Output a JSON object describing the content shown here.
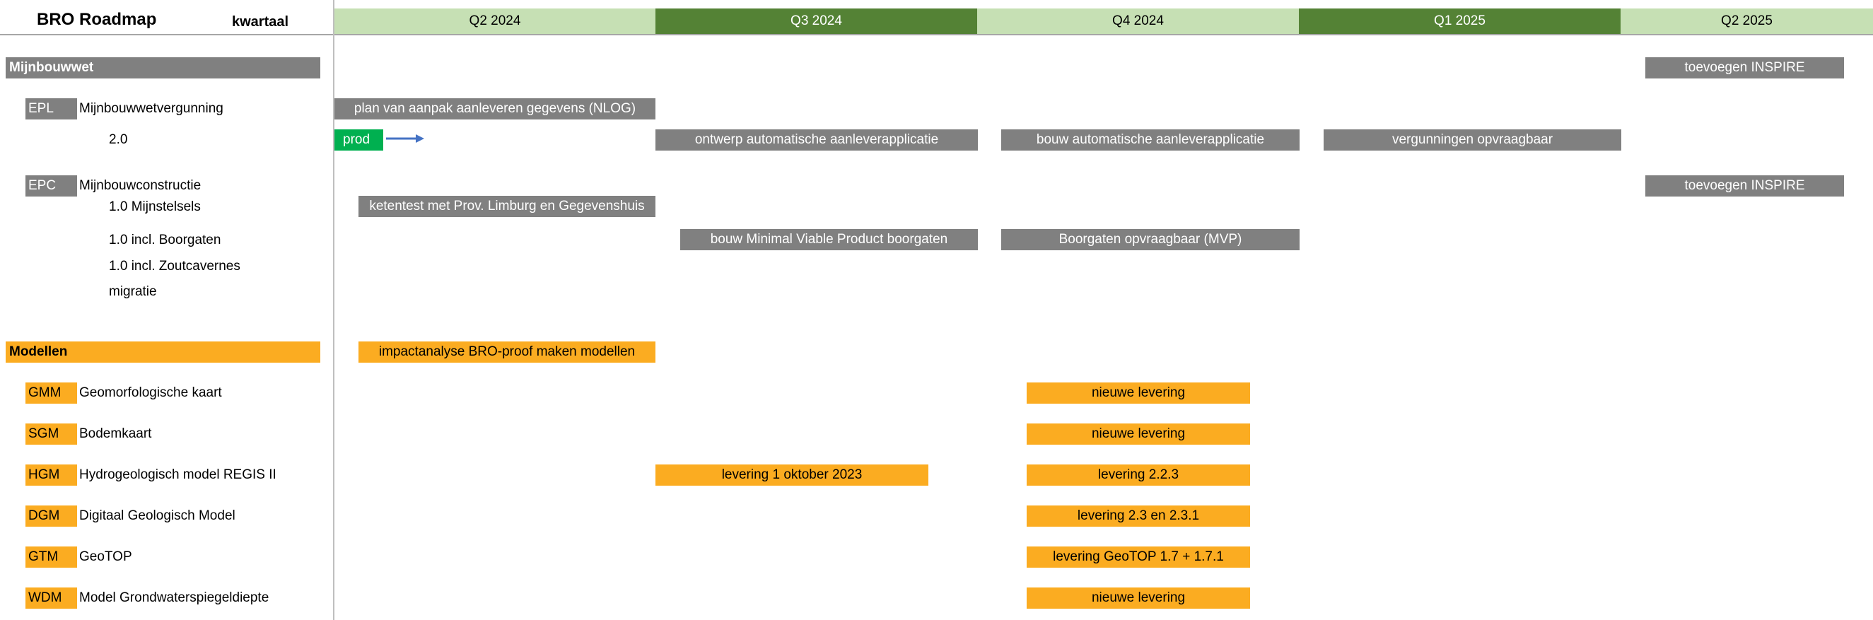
{
  "header": {
    "title": "BRO Roadmap",
    "period_label": "kwartaal"
  },
  "colors": {
    "gray": "#808080",
    "orange": "#FBAC21",
    "green_light": "#C6E0B4",
    "green_dark": "#548235",
    "prod_green": "#00B050",
    "arrow_blue": "#4472C4"
  },
  "quarters": [
    {
      "label": "Q2 2024",
      "shade": "light"
    },
    {
      "label": "Q3 2024",
      "shade": "dark"
    },
    {
      "label": "Q4 2024",
      "shade": "light"
    },
    {
      "label": "Q1 2025",
      "shade": "dark"
    },
    {
      "label": "Q2 2025",
      "shade": "light"
    }
  ],
  "sections": [
    {
      "label": "Mijnbouwwet",
      "color": "gray"
    },
    {
      "label": "Modellen",
      "color": "orange"
    }
  ],
  "items": [
    {
      "code": "EPL",
      "label": "Mijnbouwwetvergunning",
      "color": "gray"
    },
    {
      "code": "EPC",
      "label": "Mijnbouwconstructie",
      "color": "gray"
    },
    {
      "code": "GMM",
      "label": "Geomorfologische kaart",
      "color": "orange"
    },
    {
      "code": "SGM",
      "label": "Bodemkaart",
      "color": "orange"
    },
    {
      "code": "HGM",
      "label": "Hydrogeologisch model REGIS II",
      "color": "orange"
    },
    {
      "code": "DGM",
      "label": "Digitaal Geologisch Model",
      "color": "orange"
    },
    {
      "code": "GTM",
      "label": "GeoTOP",
      "color": "orange"
    },
    {
      "code": "WDM",
      "label": "Model Grondwaterspiegeldiepte",
      "color": "orange"
    }
  ],
  "subitems": [
    "2.0",
    "1.0 Mijnstelsels",
    "1.0 incl. Boorgaten",
    "1.0 incl. Zoutcavernes",
    "migratie"
  ],
  "bars": [
    {
      "text": "toevoegen INSPIRE",
      "color": "gray"
    },
    {
      "text": "plan van aanpak aanleveren gegevens (NLOG)",
      "color": "gray"
    },
    {
      "text": "prod",
      "color": "prod_green"
    },
    {
      "text": "ontwerp automatische aanleverapplicatie",
      "color": "gray"
    },
    {
      "text": "bouw automatische aanleverapplicatie",
      "color": "gray"
    },
    {
      "text": "vergunningen opvraagbaar",
      "color": "gray"
    },
    {
      "text": "toevoegen INSPIRE",
      "color": "gray"
    },
    {
      "text": "ketentest met Prov. Limburg en Gegevenshuis",
      "color": "gray"
    },
    {
      "text": "bouw Minimal Viable Product boorgaten",
      "color": "gray"
    },
    {
      "text": "Boorgaten opvraagbaar (MVP)",
      "color": "gray"
    },
    {
      "text": "impactanalyse BRO-proof maken modellen",
      "color": "orange"
    },
    {
      "text": "nieuwe levering",
      "color": "orange"
    },
    {
      "text": "nieuwe levering",
      "color": "orange"
    },
    {
      "text": "levering 1 oktober 2023",
      "color": "orange"
    },
    {
      "text": "levering 2.2.3",
      "color": "orange"
    },
    {
      "text": "levering 2.3 en 2.3.1",
      "color": "orange"
    },
    {
      "text": "levering GeoTOP 1.7 + 1.7.1",
      "color": "orange"
    },
    {
      "text": "nieuwe levering",
      "color": "orange"
    }
  ]
}
